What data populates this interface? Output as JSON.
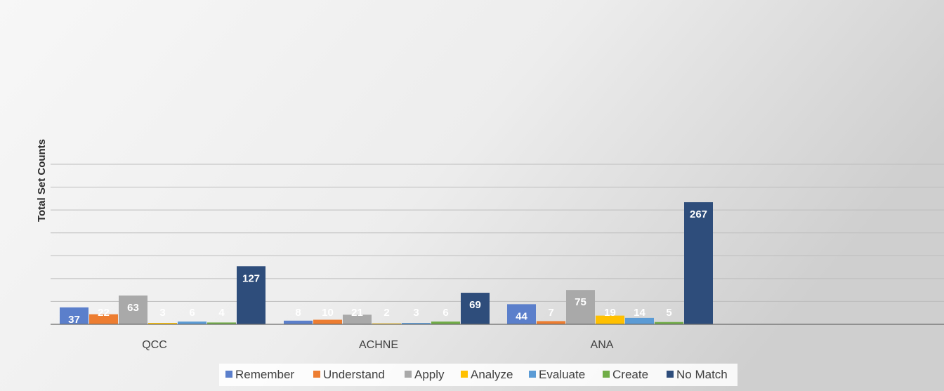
{
  "chart_data": {
    "type": "bar",
    "title": "",
    "xlabel": "",
    "ylabel": "Total Set Counts",
    "ylim": [
      0,
      350
    ],
    "grid": true,
    "legend": "bottom",
    "categories": [
      "QCC",
      "ACHNE",
      "ANA"
    ],
    "series": [
      {
        "name": "Remember",
        "color": "#5b7fcb",
        "values": [
          37,
          8,
          44
        ]
      },
      {
        "name": "Understand",
        "color": "#ed7d31",
        "values": [
          22,
          10,
          7
        ]
      },
      {
        "name": "Apply",
        "color": "#a9a9a9",
        "values": [
          63,
          21,
          75
        ]
      },
      {
        "name": "Analyze",
        "color": "#ffc000",
        "values": [
          3,
          2,
          19
        ]
      },
      {
        "name": "Evaluate",
        "color": "#5b9bd5",
        "values": [
          6,
          3,
          14
        ]
      },
      {
        "name": "Create",
        "color": "#70ad47",
        "values": [
          4,
          6,
          5
        ]
      },
      {
        "name": "No Match",
        "color": "#2e4d7b",
        "values": [
          127,
          69,
          267
        ]
      }
    ]
  }
}
